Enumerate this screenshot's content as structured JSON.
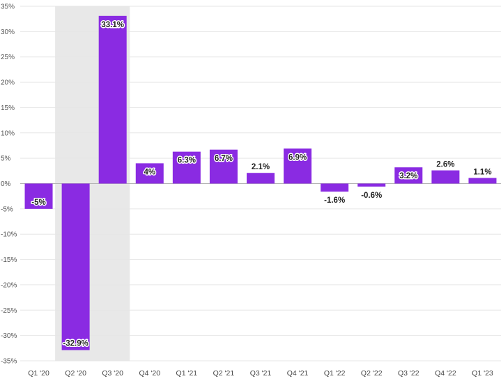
{
  "chart_data": {
    "type": "bar",
    "title": "",
    "xlabel": "",
    "ylabel": "",
    "ylim": [
      -35,
      35
    ],
    "y_ticks": [
      35,
      30,
      25,
      20,
      15,
      10,
      5,
      0,
      -5,
      -10,
      -15,
      -20,
      -25,
      -30,
      -35
    ],
    "y_tick_labels": [
      "35%",
      "30%",
      "25%",
      "20%",
      "15%",
      "10%",
      "5%",
      "0%",
      "-5%",
      "-10%",
      "-15%",
      "-20%",
      "-25%",
      "-30%",
      "-35%"
    ],
    "grid": true,
    "legend": "none",
    "categories": [
      "Q1 '20",
      "Q2 '20",
      "Q3 '20",
      "Q4 '20",
      "Q1 '21",
      "Q2 '21",
      "Q3 '21",
      "Q4 '21",
      "Q1 '22",
      "Q2 '22",
      "Q3 '22",
      "Q4 '22",
      "Q1 '23"
    ],
    "values": [
      -5,
      -32.9,
      33.1,
      4,
      6.3,
      6.7,
      2.1,
      6.9,
      -1.6,
      -0.6,
      3.2,
      2.6,
      1.1
    ],
    "data_labels": [
      "-5%",
      "-32.9%",
      "33.1%",
      "4%",
      "6.3%",
      "6.7%",
      "2.1%",
      "6.9%",
      "-1.6%",
      "-0.6%",
      "3.2%",
      "2.6%",
      "1.1%"
    ],
    "highlight_range": [
      "Q2 '20",
      "Q3 '20"
    ],
    "colors": {
      "bar": "#8a2be2",
      "grid": "#e6e6e6",
      "zero_line": "#b5b5b5",
      "highlight": "#e8e8e8"
    }
  }
}
